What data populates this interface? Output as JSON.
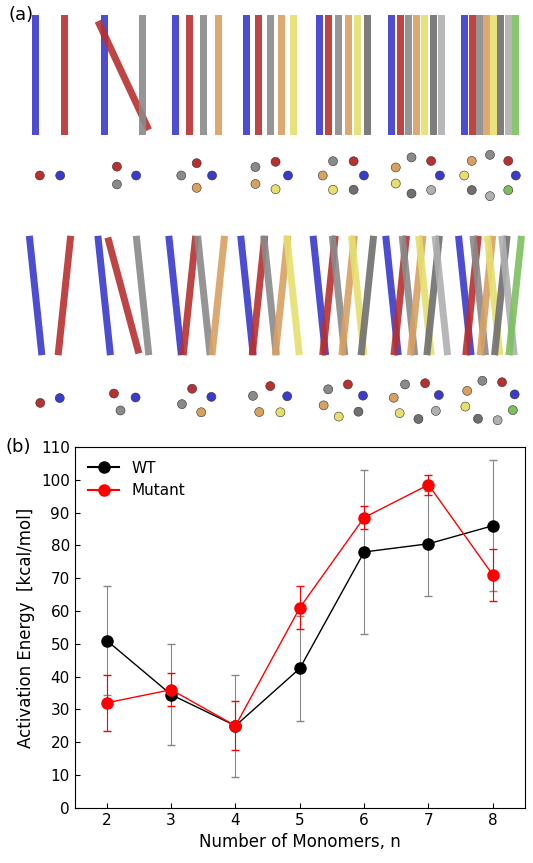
{
  "figure": {
    "panel_labels": [
      "(a)",
      "(b)"
    ]
  },
  "chart_data": {
    "type": "line",
    "x_label": "Number of Monomers, n",
    "y_label": "Activation Energy  [kcal/mol]",
    "x": [
      2,
      3,
      4,
      5,
      6,
      7,
      8
    ],
    "series": [
      {
        "name": "WT",
        "color": "#000000",
        "marker": "circle",
        "line_style": "solid",
        "values": [
          51,
          34.5,
          25,
          42.5,
          78,
          80.5,
          86
        ],
        "errors": [
          16.5,
          15.5,
          15.5,
          16,
          25,
          16,
          20
        ]
      },
      {
        "name": "Mutant",
        "color": "#ff0000",
        "marker": "circle",
        "line_style": "solid",
        "values": [
          32,
          36,
          25,
          61,
          88.5,
          98.5,
          71
        ],
        "errors": [
          8.5,
          5,
          7.5,
          6.5,
          3.5,
          3,
          8
        ]
      }
    ],
    "xlim": [
      1.5,
      8.5
    ],
    "xticks": [
      2,
      3,
      4,
      5,
      6,
      7,
      8
    ],
    "ylim": [
      0,
      110
    ],
    "yticks": [
      0,
      10,
      20,
      30,
      40,
      50,
      60,
      70,
      80,
      90,
      100,
      110
    ],
    "legend": "upper left",
    "grid": false
  }
}
